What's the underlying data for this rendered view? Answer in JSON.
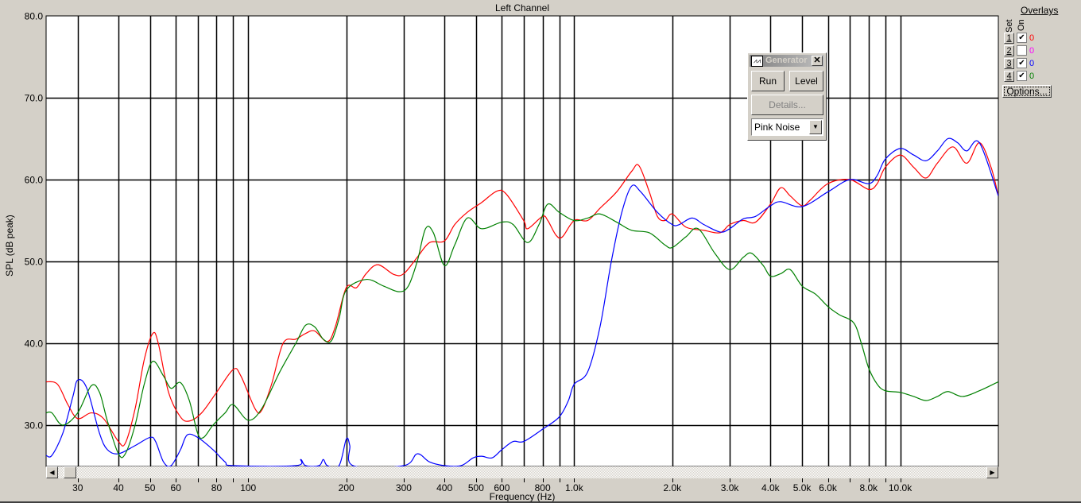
{
  "chart_data": {
    "type": "line",
    "title": "Left Channel",
    "xlabel": "Frequency (Hz)",
    "ylabel": "SPL (dB peak)",
    "x_scale": "log",
    "xlim": [
      24,
      20000
    ],
    "ylim": [
      25,
      80
    ],
    "grid": true,
    "x_gridlines": [
      30,
      40,
      50,
      60,
      70,
      80,
      90,
      100,
      200,
      300,
      400,
      500,
      600,
      700,
      800,
      900,
      1000,
      2000,
      3000,
      4000,
      5000,
      6000,
      7000,
      8000,
      9000,
      10000
    ],
    "x_ticks": [
      {
        "value": 30,
        "label": "30"
      },
      {
        "value": 40,
        "label": "40"
      },
      {
        "value": 50,
        "label": "50"
      },
      {
        "value": 60,
        "label": "60"
      },
      {
        "value": 80,
        "label": "80"
      },
      {
        "value": 100,
        "label": "100"
      },
      {
        "value": 200,
        "label": "200"
      },
      {
        "value": 300,
        "label": "300"
      },
      {
        "value": 400,
        "label": "400"
      },
      {
        "value": 500,
        "label": "500"
      },
      {
        "value": 600,
        "label": "600"
      },
      {
        "value": 800,
        "label": "800"
      },
      {
        "value": 1000,
        "label": "1.0k"
      },
      {
        "value": 2000,
        "label": "2.0k"
      },
      {
        "value": 3000,
        "label": "3.0k"
      },
      {
        "value": 4000,
        "label": "4.0k"
      },
      {
        "value": 5000,
        "label": "5.0k"
      },
      {
        "value": 6000,
        "label": "6.0k"
      },
      {
        "value": 8000,
        "label": "8.0k"
      },
      {
        "value": 10000,
        "label": "10.0k"
      }
    ],
    "y_ticks": [
      {
        "value": 80,
        "label": "80.0"
      },
      {
        "value": 70,
        "label": "70.0"
      },
      {
        "value": 60,
        "label": "60.0"
      },
      {
        "value": 50,
        "label": "50.0"
      },
      {
        "value": 40,
        "label": "40.0"
      },
      {
        "value": 30,
        "label": "30.0"
      }
    ],
    "series": [
      {
        "set": "1",
        "color": "#ff0000",
        "points": [
          [
            24,
            35.3
          ],
          [
            26,
            35
          ],
          [
            28,
            32.5
          ],
          [
            30,
            30.8
          ],
          [
            33,
            31.5
          ],
          [
            36,
            30.8
          ],
          [
            40,
            28
          ],
          [
            42,
            27.8
          ],
          [
            45,
            32
          ],
          [
            48,
            38
          ],
          [
            51,
            41.2
          ],
          [
            53,
            40
          ],
          [
            57,
            34
          ],
          [
            62,
            31
          ],
          [
            66,
            30.5
          ],
          [
            72,
            31.5
          ],
          [
            80,
            34
          ],
          [
            90,
            36.8
          ],
          [
            95,
            36
          ],
          [
            105,
            32
          ],
          [
            110,
            31.8
          ],
          [
            118,
            35
          ],
          [
            128,
            40
          ],
          [
            140,
            40.5
          ],
          [
            150,
            41.2
          ],
          [
            160,
            41.5
          ],
          [
            175,
            40.2
          ],
          [
            185,
            42
          ],
          [
            200,
            46.8
          ],
          [
            215,
            46.8
          ],
          [
            230,
            48.5
          ],
          [
            250,
            49.6
          ],
          [
            280,
            48.4
          ],
          [
            300,
            48.5
          ],
          [
            330,
            50.5
          ],
          [
            360,
            52.3
          ],
          [
            400,
            52.5
          ],
          [
            430,
            54.5
          ],
          [
            470,
            56
          ],
          [
            520,
            57.2
          ],
          [
            580,
            58.6
          ],
          [
            620,
            58.2
          ],
          [
            700,
            55
          ],
          [
            720,
            54
          ],
          [
            800,
            55.5
          ],
          [
            830,
            55
          ],
          [
            880,
            53.2
          ],
          [
            920,
            53
          ],
          [
            1000,
            55
          ],
          [
            1100,
            55
          ],
          [
            1200,
            56.5
          ],
          [
            1350,
            58.5
          ],
          [
            1500,
            61
          ],
          [
            1580,
            61.7
          ],
          [
            1700,
            58.5
          ],
          [
            1800,
            55.5
          ],
          [
            1900,
            55
          ],
          [
            2000,
            55.8
          ],
          [
            2200,
            54.2
          ],
          [
            2500,
            53.8
          ],
          [
            2800,
            53.5
          ],
          [
            3000,
            54.5
          ],
          [
            3300,
            55
          ],
          [
            3600,
            54.8
          ],
          [
            4000,
            57
          ],
          [
            4300,
            59
          ],
          [
            4600,
            58
          ],
          [
            5000,
            56.8
          ],
          [
            5300,
            57.5
          ],
          [
            6000,
            59.5
          ],
          [
            7000,
            60
          ],
          [
            8000,
            58.8
          ],
          [
            8500,
            59.5
          ],
          [
            9000,
            61.5
          ],
          [
            10000,
            63
          ],
          [
            11000,
            61.5
          ],
          [
            12000,
            60.2
          ],
          [
            13000,
            62
          ],
          [
            14500,
            64
          ],
          [
            16000,
            62
          ],
          [
            17500,
            64.5
          ],
          [
            19000,
            61.5
          ],
          [
            20000,
            58
          ]
        ]
      },
      {
        "set": "3",
        "color": "#0000ff",
        "points": [
          [
            24,
            26.3
          ],
          [
            25,
            26.3
          ],
          [
            27,
            29
          ],
          [
            29,
            33.5
          ],
          [
            30,
            35.5
          ],
          [
            32,
            34.5
          ],
          [
            35,
            29
          ],
          [
            37,
            27
          ],
          [
            40,
            26.5
          ],
          [
            45,
            27.5
          ],
          [
            50,
            28.5
          ],
          [
            52,
            28
          ],
          [
            55,
            25.5
          ],
          [
            58,
            25
          ],
          [
            62,
            27
          ],
          [
            65,
            28.8
          ],
          [
            70,
            28.5
          ],
          [
            78,
            27
          ],
          [
            85,
            25.5
          ],
          [
            90,
            25
          ],
          [
            140,
            25
          ],
          [
            145,
            25.8
          ],
          [
            150,
            25
          ],
          [
            165,
            25
          ],
          [
            170,
            25.8
          ],
          [
            175,
            25
          ],
          [
            190,
            25
          ],
          [
            200,
            28.3
          ],
          [
            205,
            27.5
          ],
          [
            210,
            25
          ],
          [
            300,
            25
          ],
          [
            330,
            26.5
          ],
          [
            360,
            25.5
          ],
          [
            400,
            25
          ],
          [
            450,
            25
          ],
          [
            490,
            26
          ],
          [
            520,
            26.2
          ],
          [
            560,
            26
          ],
          [
            600,
            27
          ],
          [
            650,
            28
          ],
          [
            700,
            28
          ],
          [
            800,
            29.5
          ],
          [
            900,
            31
          ],
          [
            960,
            33
          ],
          [
            1000,
            35
          ],
          [
            1100,
            36.5
          ],
          [
            1200,
            42
          ],
          [
            1300,
            50
          ],
          [
            1400,
            56
          ],
          [
            1500,
            59.2
          ],
          [
            1600,
            58.5
          ],
          [
            1800,
            56
          ],
          [
            2000,
            54.5
          ],
          [
            2100,
            54.5
          ],
          [
            2300,
            55.3
          ],
          [
            2500,
            54.5
          ],
          [
            2800,
            53.6
          ],
          [
            3000,
            54
          ],
          [
            3300,
            55.2
          ],
          [
            3600,
            55.5
          ],
          [
            4000,
            56.8
          ],
          [
            4300,
            57.3
          ],
          [
            5000,
            56.7
          ],
          [
            6000,
            58.5
          ],
          [
            7000,
            60
          ],
          [
            8000,
            59.5
          ],
          [
            8500,
            60.5
          ],
          [
            9000,
            62.5
          ],
          [
            10000,
            63.8
          ],
          [
            11000,
            63
          ],
          [
            12000,
            62.3
          ],
          [
            13000,
            63.5
          ],
          [
            14000,
            65
          ],
          [
            15000,
            64.5
          ],
          [
            16000,
            63.5
          ],
          [
            17500,
            64.5
          ],
          [
            20000,
            58
          ]
        ]
      },
      {
        "set": "4",
        "color": "#008000",
        "points": [
          [
            24,
            31.5
          ],
          [
            25,
            31.5
          ],
          [
            27,
            30
          ],
          [
            30,
            31.5
          ],
          [
            33,
            34.8
          ],
          [
            35,
            34
          ],
          [
            37,
            30.5
          ],
          [
            40,
            26.5
          ],
          [
            42,
            26.5
          ],
          [
            45,
            30
          ],
          [
            48,
            35
          ],
          [
            51,
            37.8
          ],
          [
            55,
            36
          ],
          [
            58,
            34.5
          ],
          [
            62,
            35.2
          ],
          [
            66,
            33
          ],
          [
            70,
            29
          ],
          [
            73,
            28.5
          ],
          [
            78,
            30
          ],
          [
            85,
            31.5
          ],
          [
            90,
            32.5
          ],
          [
            100,
            30.6
          ],
          [
            110,
            32
          ],
          [
            125,
            36.5
          ],
          [
            140,
            40
          ],
          [
            150,
            42.2
          ],
          [
            160,
            42
          ],
          [
            170,
            40.5
          ],
          [
            180,
            40.3
          ],
          [
            190,
            43
          ],
          [
            200,
            46.5
          ],
          [
            230,
            47.8
          ],
          [
            260,
            47
          ],
          [
            290,
            46.3
          ],
          [
            310,
            47
          ],
          [
            330,
            50
          ],
          [
            350,
            54
          ],
          [
            370,
            53.5
          ],
          [
            400,
            49.5
          ],
          [
            430,
            52
          ],
          [
            470,
            55.3
          ],
          [
            520,
            54
          ],
          [
            600,
            54.8
          ],
          [
            650,
            54.5
          ],
          [
            720,
            52.3
          ],
          [
            780,
            54.5
          ],
          [
            830,
            57
          ],
          [
            900,
            56
          ],
          [
            1000,
            55
          ],
          [
            1100,
            55.3
          ],
          [
            1200,
            55.8
          ],
          [
            1350,
            54.8
          ],
          [
            1500,
            53.8
          ],
          [
            1700,
            53.5
          ],
          [
            1900,
            52
          ],
          [
            2000,
            51.7
          ],
          [
            2200,
            53
          ],
          [
            2400,
            54
          ],
          [
            2700,
            51
          ],
          [
            3000,
            49
          ],
          [
            3300,
            50.5
          ],
          [
            3500,
            51
          ],
          [
            3800,
            49.5
          ],
          [
            4000,
            48.2
          ],
          [
            4300,
            48.5
          ],
          [
            4600,
            49
          ],
          [
            5000,
            47
          ],
          [
            5500,
            46
          ],
          [
            6000,
            44.5
          ],
          [
            6500,
            43.5
          ],
          [
            7200,
            42.5
          ],
          [
            7600,
            40
          ],
          [
            8000,
            37
          ],
          [
            8500,
            35
          ],
          [
            9000,
            34.2
          ],
          [
            10000,
            34
          ],
          [
            11000,
            33.5
          ],
          [
            12000,
            33
          ],
          [
            13000,
            33.5
          ],
          [
            14000,
            34.1
          ],
          [
            15500,
            33.5
          ],
          [
            17500,
            34.2
          ],
          [
            20000,
            35.3
          ]
        ]
      }
    ]
  },
  "overlays": {
    "title": "Overlays",
    "set_header": "Set",
    "on_header": "On",
    "rows": [
      {
        "set": "1",
        "on": true,
        "value": "0",
        "color": "#ff0000"
      },
      {
        "set": "2",
        "on": false,
        "value": "0",
        "color": "#ff00ff"
      },
      {
        "set": "3",
        "on": true,
        "value": "0",
        "color": "#0000ff"
      },
      {
        "set": "4",
        "on": true,
        "value": "0",
        "color": "#008000"
      }
    ],
    "options_label": "Options..."
  },
  "generator": {
    "title": "Generator",
    "close_glyph": "✕",
    "run_label": "Run",
    "level_label": "Level",
    "details_label": "Details...",
    "signal_selected": "Pink Noise"
  }
}
